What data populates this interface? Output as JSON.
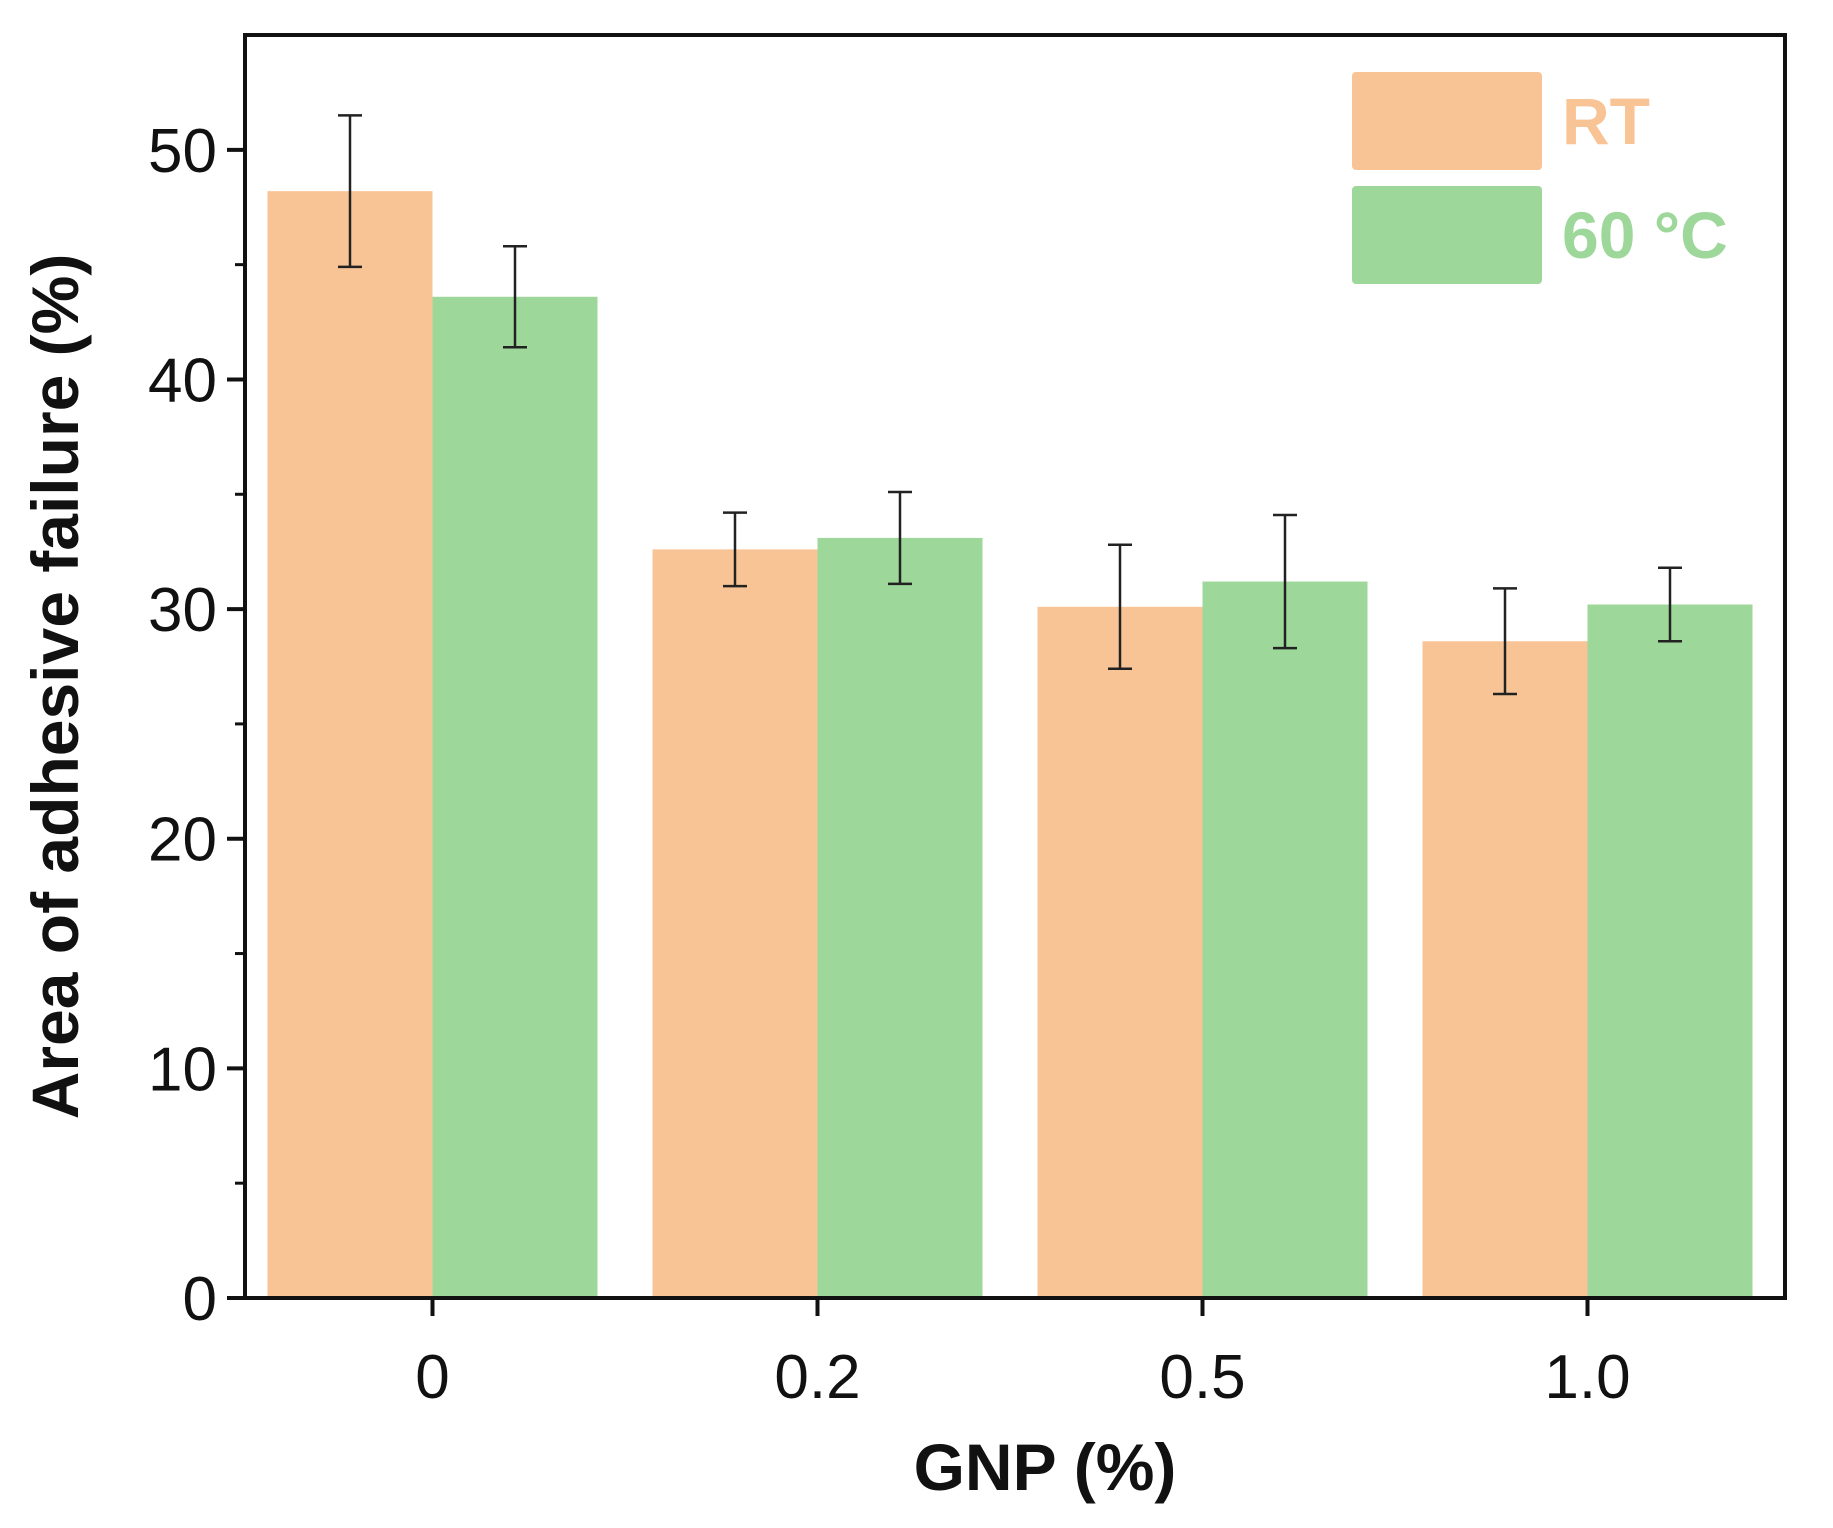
{
  "chart_data": {
    "type": "bar",
    "title": "",
    "xlabel": "GNP (%)",
    "ylabel": "Area of adhesive failure (%)",
    "categories": [
      "0",
      "0.2",
      "0.5",
      "1.0"
    ],
    "ylim": [
      0,
      55
    ],
    "yticks": [
      "0",
      "10",
      "20",
      "30",
      "40",
      "50"
    ],
    "grid": false,
    "legend_position": "top-right",
    "series": [
      {
        "name": "RT",
        "color": "#f9c495",
        "values": [
          48.2,
          32.6,
          30.1,
          28.6
        ],
        "errors": [
          3.3,
          1.6,
          2.7,
          2.3
        ]
      },
      {
        "name": "60 °C",
        "color": "#9dd79a",
        "values": [
          43.6,
          33.1,
          31.2,
          30.2
        ],
        "errors": [
          2.2,
          2.0,
          2.9,
          1.6
        ]
      }
    ]
  }
}
